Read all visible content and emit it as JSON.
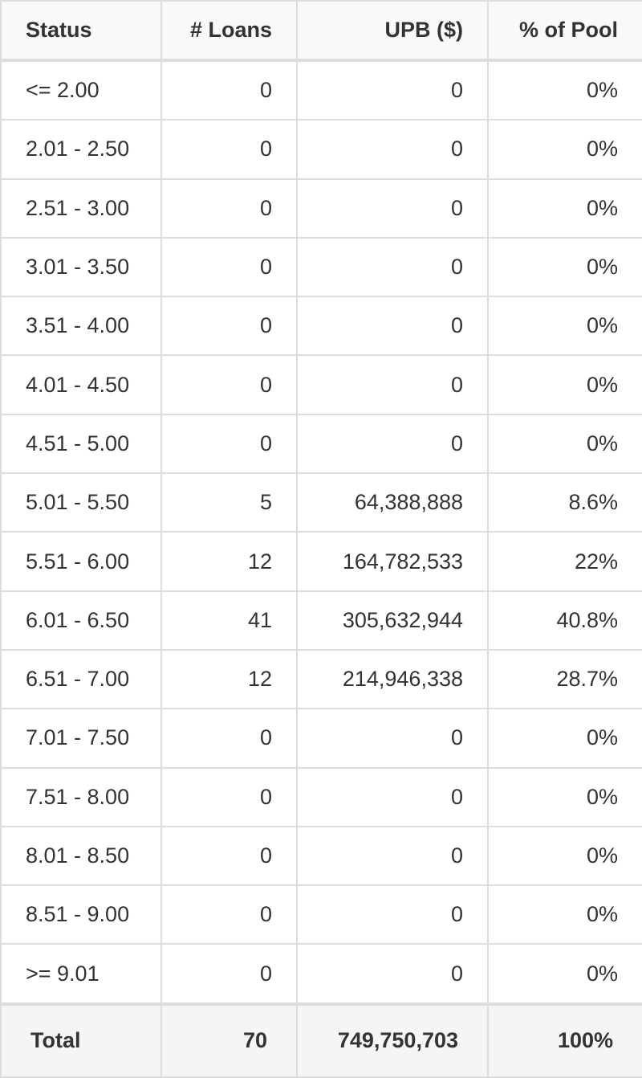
{
  "table": {
    "header": [
      "Status",
      "# Loans",
      "UPB ($)",
      "% of Pool"
    ],
    "rows": [
      [
        "<= 2.00",
        "0",
        "0",
        "0%"
      ],
      [
        "2.01 - 2.50",
        "0",
        "0",
        "0%"
      ],
      [
        "2.51 - 3.00",
        "0",
        "0",
        "0%"
      ],
      [
        "3.01 - 3.50",
        "0",
        "0",
        "0%"
      ],
      [
        "3.51 - 4.00",
        "0",
        "0",
        "0%"
      ],
      [
        "4.01 - 4.50",
        "0",
        "0",
        "0%"
      ],
      [
        "4.51 - 5.00",
        "0",
        "0",
        "0%"
      ],
      [
        "5.01 - 5.50",
        "5",
        "64,388,888",
        "8.6%"
      ],
      [
        "5.51 - 6.00",
        "12",
        "164,782,533",
        "22%"
      ],
      [
        "6.01 - 6.50",
        "41",
        "305,632,944",
        "40.8%"
      ],
      [
        "6.51 - 7.00",
        "12",
        "214,946,338",
        "28.7%"
      ],
      [
        "7.01 - 7.50",
        "0",
        "0",
        "0%"
      ],
      [
        "7.51 - 8.00",
        "0",
        "0",
        "0%"
      ],
      [
        "8.01 - 8.50",
        "0",
        "0",
        "0%"
      ],
      [
        "8.51 - 9.00",
        "0",
        "0",
        "0%"
      ],
      [
        ">= 9.01",
        "0",
        "0",
        "0%"
      ]
    ],
    "footer": [
      "Total",
      "70",
      "749,750,703",
      "100%"
    ]
  }
}
